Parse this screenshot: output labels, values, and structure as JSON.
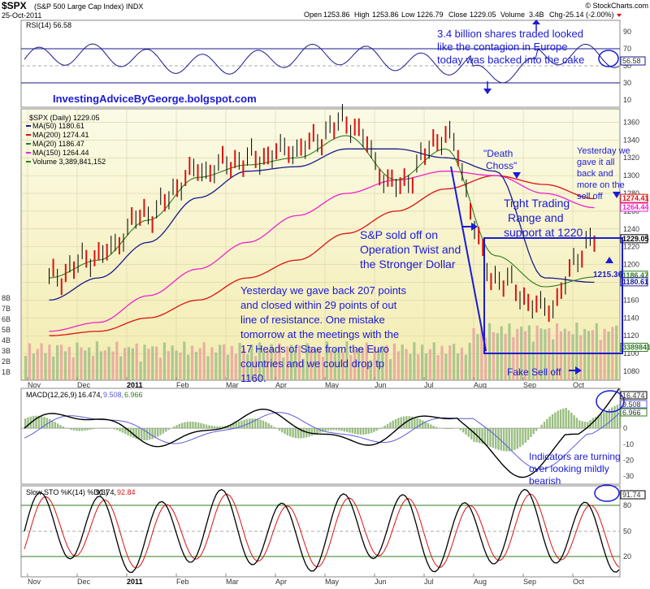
{
  "header": {
    "symbol": "$SPX",
    "name": "(S&P 500 Large Cap Index) INDX",
    "date": "25-Oct-2011",
    "brand": "© StockCharts.com",
    "open_label": "Open",
    "open": "1253.86",
    "high_label": "High",
    "high": "1253.86",
    "low_label": "Low",
    "low": "1226.79",
    "close_label": "Close",
    "close": "1229.05",
    "volume_label": "Volume",
    "volume": "3.4B",
    "chg_label": "Chg",
    "chg": "-25.14 (-2.00%)"
  },
  "rsi": {
    "legend": "RSI(14) 56.58",
    "ticks": [
      "90",
      "70",
      "50",
      "30",
      "10"
    ],
    "value_tag": "56.58",
    "annotation": [
      "3.4 billion shares traded looked",
      "like the contagion in Europe",
      "today was backed into the cake"
    ]
  },
  "price": {
    "legend_title": "$SPX (Daily) 1229.05",
    "legend": [
      {
        "text": "MA(50) 1180.61",
        "color": "#1a1a8c"
      },
      {
        "text": "MA(200) 1274.41",
        "color": "#dd1111"
      },
      {
        "text": "MA(20) 1186.47",
        "color": "#2e7d1e"
      },
      {
        "text": "MA(150) 1264.44",
        "color": "#ee22cc"
      },
      {
        "text": "Volume 3,389,841,152",
        "color": "#2e7d1e"
      }
    ],
    "ticks": [
      "1360",
      "1340",
      "1320",
      "1300",
      "1280",
      "1260",
      "1240",
      "1220",
      "1200",
      "1180",
      "1160",
      "1140",
      "1120",
      "1100",
      "1080"
    ],
    "vol_ticks": [
      "8B",
      "7B",
      "6B",
      "5B",
      "4B",
      "3B",
      "2B",
      "1B"
    ],
    "tags": [
      {
        "text": "1274.41",
        "color": "#dd1111",
        "y": 1274.41
      },
      {
        "text": "1264.44",
        "color": "#ee22cc",
        "y": 1264.44
      },
      {
        "text": "1229.05",
        "color": "#000000",
        "y": 1229.05
      },
      {
        "text": "1186.47",
        "color": "#2e7d1e",
        "y": 1188
      },
      {
        "text": "1180.61",
        "color": "#1a1a8c",
        "y": 1180.61
      },
      {
        "text": "3389841",
        "color": "#2e7d1e",
        "y": 1107
      }
    ],
    "low_label": "1215.36",
    "blog": "InvestingAdviceByGeorge.bolgspot.com",
    "ann_death": [
      "\"Death",
      "Choss\""
    ],
    "ann_yesterday": [
      "Yesterday we",
      "gave it all",
      "back and",
      "more on the",
      "sell off"
    ],
    "ann_range": [
      "Tight Trading",
      "Range and",
      "support at 1220"
    ],
    "ann_twist": [
      "S&P sold off on",
      "Operation Twist and",
      "the Stronger Dollar"
    ],
    "ann_main": [
      "Yesterday we gave back 207 points",
      "and closed within 29 points of out",
      "line of resistance. One mistake",
      "tomorrow at the meetings with the",
      "17 Heads of Stae from the Euro",
      "countries and we could drop tp",
      "1160."
    ],
    "ann_fake": "Fake Sell off"
  },
  "macd": {
    "legend_name": "MACD(12,26,9)",
    "legend_v1": "16.474,",
    "legend_v2": "9.508,",
    "legend_v3": "6.966",
    "ticks": [
      "20",
      "10",
      "0",
      "-10",
      "-20",
      "-30"
    ],
    "tags": [
      "16.474",
      "9.508",
      "6.966"
    ],
    "annotation": [
      "Indicators are turning",
      "over looking mildly",
      "bearish"
    ]
  },
  "sto": {
    "legend_name": "Slow STO %K(14) %D(3)",
    "legend_v1": "91.74,",
    "legend_v2": "92.84",
    "ticks": [
      "80",
      "50",
      "20"
    ],
    "value_tag": "91.74"
  },
  "x_axis": {
    "months": [
      "Nov",
      "Dec",
      "2011",
      "Feb",
      "Mar",
      "Apr",
      "May",
      "Jun",
      "Jul",
      "Aug",
      "Sep",
      "Oct"
    ]
  },
  "colors": {
    "up": "#000000",
    "down": "#dd1111",
    "annotation": "#1a1ad6",
    "ma50": "#1a1a8c",
    "ma200": "#dd1111",
    "ma20": "#2e7d1e",
    "ma150": "#ee22cc"
  },
  "chart_data": {
    "type": "line",
    "title": "$SPX (S&P 500 Large Cap Index) INDX",
    "ylabel": "",
    "xlabel": "",
    "ylim": [
      1070,
      1375
    ],
    "x": [
      "Nov",
      "Dec",
      "2011",
      "Feb",
      "Mar",
      "Apr",
      "May",
      "Jun",
      "Jul",
      "Aug",
      "Sep",
      "Oct"
    ],
    "series": [
      {
        "name": "$SPX (Daily) 1229.05",
        "values": [
          1185,
          1210,
          1258,
          1305,
          1318,
          1330,
          1360,
          1288,
          1345,
          1185,
          1150,
          1229
        ]
      },
      {
        "name": "MA(50) 1180.61",
        "values": [
          1160,
          1185,
          1225,
          1275,
          1305,
          1310,
          1330,
          1330,
          1320,
          1305,
          1185,
          1180
        ]
      },
      {
        "name": "MA(200) 1274.41",
        "values": [
          1120,
          1125,
          1140,
          1160,
          1185,
          1205,
          1235,
          1260,
          1285,
          1300,
          1290,
          1274
        ]
      },
      {
        "name": "MA(20) 1186.47",
        "values": [
          1185,
          1205,
          1250,
          1298,
          1312,
          1320,
          1345,
          1295,
          1330,
          1210,
          1175,
          1186
        ]
      },
      {
        "name": "MA(150) 1264.44",
        "values": [
          1125,
          1135,
          1165,
          1195,
          1225,
          1255,
          1280,
          1295,
          1305,
          1300,
          1280,
          1264
        ]
      }
    ]
  }
}
